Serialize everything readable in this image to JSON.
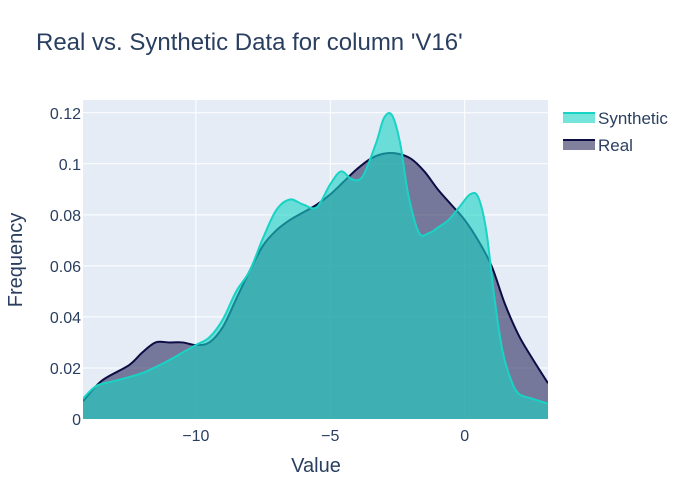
{
  "chart_data": {
    "type": "area",
    "title": "Real vs. Synthetic Data for column 'V16'",
    "xlabel": "Value",
    "ylabel": "Frequency",
    "xlim": [
      -14.2,
      3.1
    ],
    "ylim": [
      0,
      0.125
    ],
    "x_ticks": [
      -10,
      -5,
      0
    ],
    "x_tick_labels": [
      "−10",
      "−5",
      "0"
    ],
    "y_ticks": [
      0,
      0.02,
      0.04,
      0.06,
      0.08,
      0.1,
      0.12
    ],
    "y_tick_labels": [
      "0",
      "0.02",
      "0.04",
      "0.06",
      "0.08",
      "0.1",
      "0.12"
    ],
    "grid": true,
    "legend_position": "top-right",
    "series": [
      {
        "name": "Real",
        "color": "#0d0d45",
        "fill": "rgba(13,13,69,0.52)",
        "x": [
          -14.2,
          -13.5,
          -12.5,
          -12,
          -11.5,
          -11,
          -10.5,
          -10,
          -9.5,
          -9,
          -8.5,
          -8,
          -7.5,
          -7,
          -6.5,
          -6,
          -5.5,
          -5,
          -4.5,
          -4,
          -3.5,
          -3,
          -2.5,
          -2,
          -1.5,
          -1,
          -0.5,
          0,
          0.5,
          1,
          1.5,
          2,
          2.5,
          3.1
        ],
        "values": [
          0.007,
          0.015,
          0.021,
          0.026,
          0.03,
          0.03,
          0.03,
          0.029,
          0.03,
          0.036,
          0.047,
          0.058,
          0.068,
          0.074,
          0.078,
          0.081,
          0.084,
          0.088,
          0.093,
          0.098,
          0.102,
          0.104,
          0.104,
          0.102,
          0.097,
          0.09,
          0.084,
          0.078,
          0.07,
          0.06,
          0.045,
          0.033,
          0.024,
          0.014
        ]
      },
      {
        "name": "Synthetic",
        "color": "#19d3c5",
        "fill": "rgba(25,211,197,0.6)",
        "x": [
          -14.2,
          -13.7,
          -13,
          -12,
          -11,
          -10.5,
          -10,
          -9.5,
          -9,
          -8.5,
          -8,
          -7.5,
          -7,
          -6.5,
          -6,
          -5.5,
          -5,
          -4.6,
          -4.2,
          -3.8,
          -3.3,
          -3,
          -2.7,
          -2.4,
          -2.1,
          -1.7,
          -1.3,
          -1,
          -0.6,
          -0.2,
          0.2,
          0.5,
          0.8,
          1.1,
          1.4,
          1.7,
          2,
          2.5,
          3.1
        ],
        "values": [
          0.008,
          0.013,
          0.015,
          0.018,
          0.023,
          0.026,
          0.029,
          0.032,
          0.039,
          0.05,
          0.058,
          0.071,
          0.082,
          0.086,
          0.084,
          0.083,
          0.092,
          0.097,
          0.094,
          0.095,
          0.108,
          0.118,
          0.119,
          0.108,
          0.088,
          0.073,
          0.073,
          0.075,
          0.078,
          0.083,
          0.088,
          0.087,
          0.074,
          0.048,
          0.027,
          0.016,
          0.01,
          0.008,
          0.006
        ]
      }
    ]
  }
}
